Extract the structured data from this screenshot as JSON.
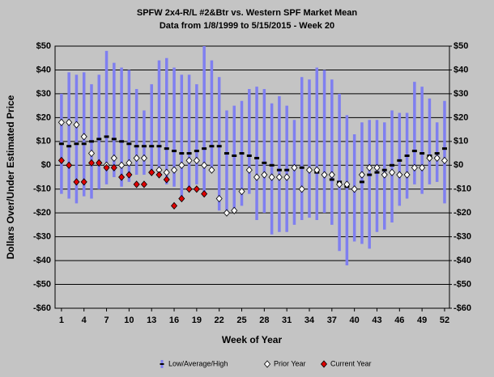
{
  "chart_data": {
    "type": "range",
    "title": "SPFW  2x4-R/L #2&Btr vs. Western SPF Market Mean",
    "subtitle": "Data from 1/8/1999 to 5/15/2015 - Week 20",
    "x_label": "Week of Year",
    "y_label": "Dollars Over/Under Estimated Price",
    "x": [
      1,
      2,
      3,
      4,
      5,
      6,
      7,
      8,
      9,
      10,
      11,
      12,
      13,
      14,
      15,
      16,
      17,
      18,
      19,
      20,
      21,
      22,
      23,
      24,
      25,
      26,
      27,
      28,
      29,
      30,
      31,
      32,
      33,
      34,
      35,
      36,
      37,
      38,
      39,
      40,
      41,
      42,
      43,
      44,
      45,
      46,
      47,
      48,
      49,
      50,
      51,
      52
    ],
    "series": [
      {
        "name": "Low/Average/High",
        "color": "#7f7ff0",
        "values": [
          9,
          8,
          9,
          9,
          10,
          11,
          12,
          11,
          10,
          9,
          8,
          8,
          8,
          8,
          7,
          6,
          5,
          5,
          6,
          7,
          8,
          8,
          5,
          4,
          5,
          4,
          3,
          1,
          0,
          -2,
          -2,
          -1,
          -1,
          -2,
          -3,
          -4,
          -6,
          -7,
          -9,
          -10,
          -7,
          -4,
          -3,
          -2,
          0,
          2,
          4,
          6,
          5,
          4,
          5,
          7
        ],
        "low": [
          -12,
          -14,
          -16,
          -13,
          -14,
          -10,
          -8,
          -5,
          -9,
          -7,
          -4,
          -4,
          -4,
          -4,
          -8,
          -9,
          -14,
          -10,
          -8,
          -13,
          -3,
          -19,
          -20,
          -20,
          -17,
          -12,
          -23,
          -20,
          -29,
          -28,
          -28,
          -25,
          -23,
          -22,
          -23,
          -20,
          -25,
          -36,
          -42,
          -32,
          -33,
          -35,
          -28,
          -27,
          -24,
          -17,
          -14,
          -8,
          -12,
          -8,
          -7,
          -16
        ],
        "high": [
          30,
          39,
          38,
          39,
          34,
          38,
          48,
          43,
          41,
          40,
          32,
          23,
          34,
          44,
          45,
          41,
          38,
          38,
          34,
          50,
          44,
          37,
          23,
          25,
          27,
          32,
          33,
          32,
          26,
          29,
          25,
          19,
          37,
          36,
          41,
          40,
          36,
          30,
          21,
          13,
          18,
          19,
          19,
          18,
          23,
          22,
          22,
          35,
          33,
          28,
          18,
          27
        ]
      },
      {
        "name": "Prior Year",
        "color": "#ffffff",
        "values": [
          18,
          18,
          17,
          12,
          5,
          1,
          0,
          3,
          0,
          1,
          3,
          3,
          -3,
          -2,
          -3,
          -2,
          0,
          2,
          2,
          0,
          -2,
          -14,
          -20,
          -19,
          -11,
          -2,
          -5,
          -4,
          -5,
          -5,
          -5,
          -1,
          -10,
          -2,
          -2,
          -4,
          -4,
          -8,
          -8,
          -10,
          -4,
          -1,
          -1,
          -4,
          -3,
          -4,
          -4,
          -1,
          -1,
          3,
          3,
          2
        ]
      },
      {
        "name": "Current Year",
        "color": "#e00000",
        "values": [
          2,
          0,
          -7,
          -7,
          1,
          1,
          -1,
          -1,
          -5,
          -4,
          -8,
          -8,
          -3,
          -4,
          -6,
          -17,
          -14,
          -10,
          -10,
          -12,
          null,
          null,
          null,
          null,
          null,
          null,
          null,
          null,
          null,
          null,
          null,
          null,
          null,
          null,
          null,
          null,
          null,
          null,
          null,
          null,
          null,
          null,
          null,
          null,
          null,
          null,
          null,
          null,
          null,
          null,
          null,
          null
        ]
      }
    ],
    "xlim": [
      0.15,
      52.65
    ],
    "xticks": [
      1,
      4,
      7,
      10,
      13,
      16,
      19,
      22,
      25,
      28,
      31,
      34,
      37,
      40,
      43,
      46,
      49,
      52
    ],
    "ylim": [
      -60,
      50
    ],
    "yticks": [
      {
        "value": -60,
        "label": "-$60"
      },
      {
        "value": -50,
        "label": "-$50"
      },
      {
        "value": -40,
        "label": "-$40"
      },
      {
        "value": -30,
        "label": "-$30"
      },
      {
        "value": -20,
        "label": "-$20"
      },
      {
        "value": -10,
        "label": "-$10"
      },
      {
        "value": 0,
        "label": "$0"
      },
      {
        "value": 10,
        "label": "$10"
      },
      {
        "value": 20,
        "label": "$20"
      },
      {
        "value": 30,
        "label": "$30"
      },
      {
        "value": 40,
        "label": "$40"
      },
      {
        "value": 50,
        "label": "$50"
      }
    ],
    "y2lim": [
      -60,
      50
    ],
    "y2ticks": [
      {
        "value": -60,
        "label": "-$60"
      },
      {
        "value": -50,
        "label": "-$50"
      },
      {
        "value": -40,
        "label": "-$40"
      },
      {
        "value": -30,
        "label": "-$30"
      },
      {
        "value": -20,
        "label": "-$20"
      },
      {
        "value": -10,
        "label": "-$10"
      },
      {
        "value": 0,
        "label": "$0"
      },
      {
        "value": 10,
        "label": "$10"
      },
      {
        "value": 20,
        "label": "$20"
      },
      {
        "value": 30,
        "label": "$30"
      },
      {
        "value": 40,
        "label": "$40"
      },
      {
        "value": 50,
        "label": "$50"
      }
    ],
    "grid": true
  }
}
